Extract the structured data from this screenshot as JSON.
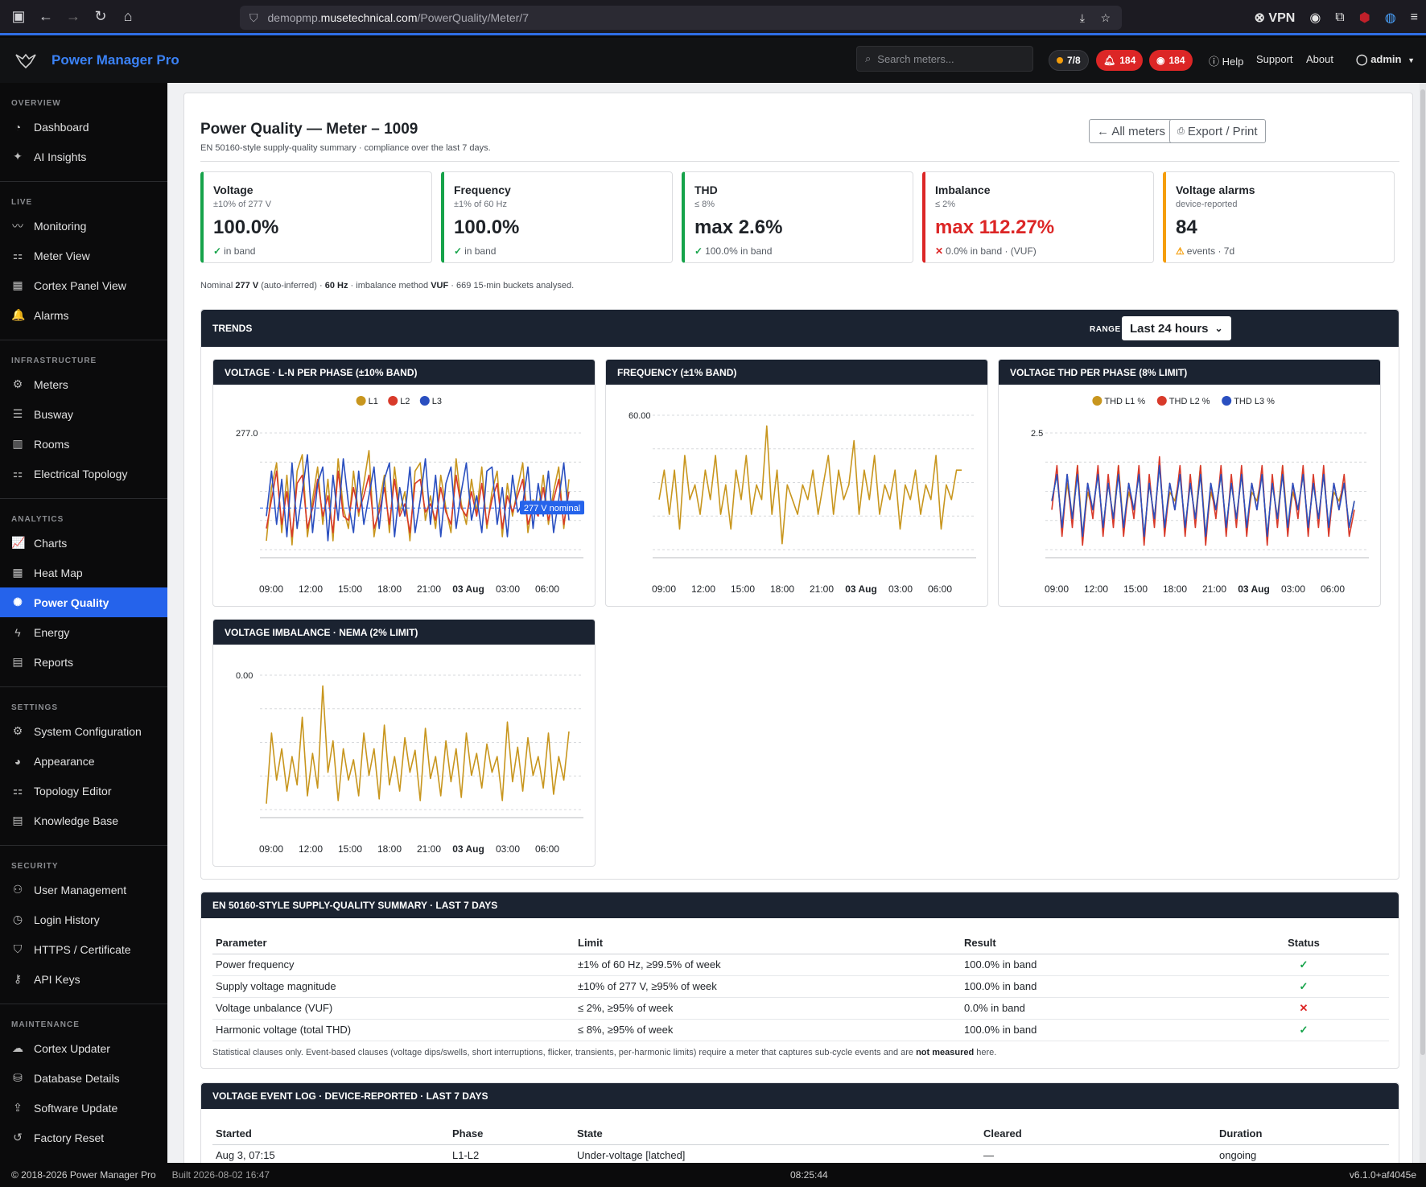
{
  "browser": {
    "url_prefix": "demopmp.",
    "url_domain": "musetechnical.com",
    "url_path": "/PowerQuality/Meter/7",
    "vpn_label": "VPN"
  },
  "header": {
    "brand": "Power Manager Pro",
    "search_placeholder": "Search meters...",
    "meters_badge": "7/8",
    "alarms_badge": "184",
    "watch_badge": "184",
    "help": "Help",
    "support": "Support",
    "about": "About",
    "user": "admin"
  },
  "sidebar": {
    "sections": [
      {
        "title": "OVERVIEW",
        "items": [
          {
            "label": "Dashboard",
            "icon": "gauge-icon",
            "glyph": "◔"
          },
          {
            "label": "AI Insights",
            "icon": "sparkle-icon",
            "glyph": "✦"
          }
        ]
      },
      {
        "title": "LIVE",
        "items": [
          {
            "label": "Monitoring",
            "icon": "pulse-icon",
            "glyph": "〰"
          },
          {
            "label": "Meter View",
            "icon": "sitemap-icon",
            "glyph": "⚏"
          },
          {
            "label": "Cortex Panel View",
            "icon": "grid-icon",
            "glyph": "▦"
          },
          {
            "label": "Alarms",
            "icon": "bell-icon",
            "glyph": "🔔"
          }
        ]
      },
      {
        "title": "INFRASTRUCTURE",
        "items": [
          {
            "label": "Meters",
            "icon": "cog-icon",
            "glyph": "⚙"
          },
          {
            "label": "Busway",
            "icon": "lines-icon",
            "glyph": "☰"
          },
          {
            "label": "Rooms",
            "icon": "columns-icon",
            "glyph": "▥"
          },
          {
            "label": "Electrical Topology",
            "icon": "topology-icon",
            "glyph": "⚏"
          }
        ]
      },
      {
        "title": "ANALYTICS",
        "items": [
          {
            "label": "Charts",
            "icon": "chart-line-icon",
            "glyph": "📈"
          },
          {
            "label": "Heat Map",
            "icon": "grid-icon",
            "glyph": "▦"
          },
          {
            "label": "Power Quality",
            "icon": "waveform-icon",
            "glyph": "✺",
            "active": true
          },
          {
            "label": "Energy",
            "icon": "bolt-icon",
            "glyph": "ϟ"
          },
          {
            "label": "Reports",
            "icon": "document-icon",
            "glyph": "▤"
          }
        ]
      },
      {
        "title": "SETTINGS",
        "items": [
          {
            "label": "System Configuration",
            "icon": "gear-icon",
            "glyph": "⚙"
          },
          {
            "label": "Appearance",
            "icon": "palette-icon",
            "glyph": "◕"
          },
          {
            "label": "Topology Editor",
            "icon": "topology-icon",
            "glyph": "⚏"
          },
          {
            "label": "Knowledge Base",
            "icon": "book-icon",
            "glyph": "▤"
          }
        ]
      },
      {
        "title": "SECURITY",
        "items": [
          {
            "label": "User Management",
            "icon": "users-icon",
            "glyph": "⚇"
          },
          {
            "label": "Login History",
            "icon": "history-icon",
            "glyph": "◷"
          },
          {
            "label": "HTTPS / Certificate",
            "icon": "shield-icon",
            "glyph": "⛉"
          },
          {
            "label": "API Keys",
            "icon": "key-icon",
            "glyph": "⚷"
          }
        ]
      },
      {
        "title": "MAINTENANCE",
        "items": [
          {
            "label": "Cortex Updater",
            "icon": "cloud-icon",
            "glyph": "☁"
          },
          {
            "label": "Database Details",
            "icon": "database-icon",
            "glyph": "⛁"
          },
          {
            "label": "Software Update",
            "icon": "upload-icon",
            "glyph": "⇪"
          },
          {
            "label": "Factory Reset",
            "icon": "reset-icon",
            "glyph": "↺"
          }
        ]
      }
    ]
  },
  "page": {
    "title": "Power Quality — Meter – 1009",
    "subtitle": "EN 50160-style supply-quality summary · compliance over the last 7 days.",
    "all_meters_label": "← All meters",
    "export_label": "Export / Print"
  },
  "kpis": {
    "voltage": {
      "title": "Voltage",
      "sub": "±10% of 277 V",
      "value": "100.0%",
      "foot": "in band",
      "mark": "✓",
      "mark_color": "#16a34a",
      "accent": "#16a34a"
    },
    "frequency": {
      "title": "Frequency",
      "sub": "±1% of 60 Hz",
      "value": "100.0%",
      "foot": "in band",
      "mark": "✓",
      "mark_color": "#16a34a",
      "accent": "#16a34a"
    },
    "thd": {
      "title": "THD",
      "sub": "≤ 8%",
      "value": "max 2.6%",
      "foot": "100.0% in band",
      "mark": "✓",
      "mark_color": "#16a34a",
      "accent": "#16a34a"
    },
    "imbalance": {
      "title": "Imbalance",
      "sub": "≤ 2%",
      "value": "max 112.27%",
      "foot": "0.0% in band · (VUF)",
      "mark": "✕",
      "mark_color": "#dc2626",
      "accent": "#dc2626"
    },
    "alarms": {
      "title": "Voltage alarms",
      "sub": "device-reported",
      "value": "84",
      "foot": "events · 7d",
      "mark": "⚠",
      "mark_color": "#f59e0b",
      "accent": "#f59e0b"
    }
  },
  "nominal": {
    "prefix": "Nominal",
    "voltage": "277 V",
    "voltage_note": "(auto-inferred) ·",
    "freq": "60 Hz",
    "method_text": "· imbalance method",
    "method": "VUF",
    "buckets_text": "· 669 15-min buckets analysed."
  },
  "trends": {
    "title": "TRENDS",
    "range_label": "RANGE",
    "range_value": "Last 24 hours"
  },
  "chart_data": [
    {
      "id": "voltage",
      "type": "line",
      "title": "VOLTAGE · L-N PER PHASE (±10% BAND)",
      "x_ticks": [
        "09:00",
        "12:00",
        "15:00",
        "18:00",
        "21:00",
        "03 Aug",
        "03:00",
        "06:00"
      ],
      "y_ticks": [
        "277.0"
      ],
      "annotation": "277 V nominal",
      "legend_position": "top",
      "grid": true,
      "series": [
        {
          "name": "L1",
          "color": "#c8961e",
          "values": [
            276.2,
            277.5,
            278.1,
            276.4,
            277.8,
            276.1,
            277.9,
            278.3,
            276.3,
            277.2,
            278.0,
            276.6,
            277.7,
            276.2,
            278.2,
            277.0,
            276.5,
            277.9,
            276.8,
            277.6,
            278.4,
            276.3,
            277.1,
            277.8,
            276.4,
            278.0,
            276.9,
            277.4,
            276.2,
            277.9,
            278.1,
            276.7,
            277.3,
            276.5,
            277.8,
            277.0,
            276.4,
            278.2,
            277.1,
            276.6,
            277.7,
            276.9,
            278.0,
            276.5,
            277.4,
            277.9,
            276.3,
            277.6,
            276.8,
            277.5,
            278.1,
            276.4,
            277.2,
            276.9,
            277.8,
            276.6,
            277.4,
            278.0,
            276.5,
            277.7
          ]
        },
        {
          "name": "L2",
          "color": "#d83a2a",
          "values": [
            276.5,
            277.2,
            277.9,
            276.6,
            277.4,
            276.3,
            277.6,
            277.8,
            276.5,
            277.0,
            277.7,
            276.8,
            277.3,
            276.4,
            277.9,
            276.8,
            276.7,
            277.5,
            276.9,
            277.3,
            277.8,
            276.5,
            276.9,
            277.5,
            276.6,
            277.7,
            276.8,
            277.1,
            276.4,
            277.6,
            277.7,
            276.9,
            277.1,
            276.7,
            277.5,
            276.9,
            276.6,
            277.8,
            277.0,
            276.8,
            277.4,
            276.8,
            277.6,
            276.6,
            277.2,
            277.6,
            276.5,
            277.3,
            276.9,
            277.3,
            277.7,
            276.6,
            277.0,
            276.8,
            277.5,
            276.7,
            277.2,
            277.7,
            276.6,
            277.4
          ]
        },
        {
          "name": "L3",
          "color": "#2a4fc0",
          "values": [
            276.8,
            277.9,
            276.6,
            277.7,
            276.3,
            278.1,
            276.5,
            277.4,
            278.3,
            276.4,
            277.6,
            278.0,
            276.2,
            277.8,
            276.7,
            278.2,
            277.1,
            276.4,
            277.9,
            276.6,
            277.3,
            278.0,
            276.5,
            277.7,
            278.1,
            276.3,
            277.5,
            276.8,
            278.0,
            276.4,
            277.2,
            278.2,
            276.6,
            277.8,
            276.3,
            277.6,
            278.0,
            276.5,
            277.4,
            278.1,
            276.7,
            277.3,
            276.4,
            277.9,
            278.0,
            276.6,
            277.5,
            276.3,
            277.8,
            276.9,
            277.1,
            278.0,
            276.5,
            277.6,
            276.8,
            277.9,
            276.4,
            277.2,
            278.1,
            276.7
          ]
        }
      ]
    },
    {
      "id": "frequency",
      "type": "line",
      "title": "FREQUENCY (±1% BAND)",
      "x_ticks": [
        "09:00",
        "12:00",
        "15:00",
        "18:00",
        "21:00",
        "03 Aug",
        "03:00",
        "06:00"
      ],
      "y_ticks": [
        "60.00"
      ],
      "grid": true,
      "series": [
        {
          "name": "",
          "color": "#c8961e",
          "values": [
            59.99,
            60.01,
            59.98,
            60.01,
            59.97,
            60.02,
            59.99,
            60.0,
            59.98,
            60.01,
            59.99,
            60.02,
            59.98,
            60.0,
            59.97,
            60.01,
            59.99,
            60.02,
            59.98,
            60.0,
            59.99,
            60.04,
            59.98,
            60.01,
            59.96,
            60.0,
            59.99,
            59.98,
            60.0,
            59.99,
            60.01,
            59.98,
            60.0,
            60.02,
            59.98,
            60.01,
            59.99,
            60.0,
            60.03,
            59.98,
            60.01,
            59.99,
            60.02,
            59.98,
            60.0,
            59.99,
            60.01,
            59.97,
            60.0,
            59.99,
            60.01,
            59.98,
            60.0,
            59.99,
            60.02,
            59.97,
            60.0,
            59.99,
            60.01,
            60.01
          ]
        }
      ]
    },
    {
      "id": "thd",
      "type": "line",
      "title": "VOLTAGE THD PER PHASE (8% LIMIT)",
      "x_ticks": [
        "09:00",
        "12:00",
        "15:00",
        "18:00",
        "21:00",
        "03 Aug",
        "03:00",
        "06:00"
      ],
      "y_ticks": [
        "2.5"
      ],
      "legend_position": "top",
      "grid": true,
      "series": [
        {
          "name": "THD L1 %",
          "color": "#c8961e",
          "values": [
            2.1,
            2.4,
            1.8,
            2.3,
            1.9,
            2.5,
            1.7,
            2.2,
            2.0,
            2.4,
            1.8,
            2.3,
            1.9,
            2.5,
            1.8,
            2.2,
            2.0,
            2.4,
            1.7,
            2.3,
            1.9,
            2.5,
            1.8,
            2.2,
            2.1,
            2.4,
            1.8,
            2.3,
            1.9,
            2.5,
            1.7,
            2.2,
            2.0,
            2.4,
            1.8,
            2.3,
            1.9,
            2.4,
            1.8,
            2.2,
            2.1,
            2.4,
            1.7,
            2.3,
            1.9,
            2.5,
            1.8,
            2.2,
            2.0,
            2.4,
            1.8,
            2.3,
            1.9,
            2.4,
            1.8,
            2.2,
            2.1,
            2.3,
            1.8,
            2.1
          ]
        },
        {
          "name": "THD L2 %",
          "color": "#d83a2a",
          "values": [
            2.0,
            2.5,
            1.7,
            2.4,
            1.8,
            2.5,
            1.6,
            2.3,
            1.9,
            2.5,
            1.7,
            2.4,
            1.8,
            2.5,
            1.7,
            2.3,
            1.9,
            2.5,
            1.6,
            2.4,
            1.8,
            2.6,
            1.7,
            2.3,
            2.0,
            2.5,
            1.7,
            2.4,
            1.8,
            2.5,
            1.6,
            2.3,
            1.9,
            2.5,
            1.7,
            2.4,
            1.8,
            2.5,
            1.7,
            2.3,
            2.0,
            2.5,
            1.6,
            2.4,
            1.8,
            2.5,
            1.7,
            2.3,
            1.9,
            2.5,
            1.7,
            2.4,
            1.8,
            2.5,
            1.7,
            2.3,
            2.0,
            2.4,
            1.7,
            2.0
          ]
        },
        {
          "name": "THD L3 %",
          "color": "#2a4fc0",
          "values": [
            2.1,
            2.4,
            1.8,
            2.4,
            1.9,
            2.4,
            1.7,
            2.3,
            2.0,
            2.4,
            1.8,
            2.3,
            1.9,
            2.4,
            1.8,
            2.3,
            2.0,
            2.4,
            1.7,
            2.3,
            1.9,
            2.5,
            1.8,
            2.3,
            2.0,
            2.4,
            1.8,
            2.3,
            1.9,
            2.4,
            1.7,
            2.3,
            2.0,
            2.4,
            1.8,
            2.3,
            1.9,
            2.4,
            1.8,
            2.3,
            2.0,
            2.4,
            1.7,
            2.3,
            1.9,
            2.4,
            1.8,
            2.3,
            2.0,
            2.4,
            1.8,
            2.3,
            1.9,
            2.4,
            1.8,
            2.3,
            2.0,
            2.3,
            1.8,
            2.1
          ]
        }
      ]
    },
    {
      "id": "imbalance",
      "type": "line",
      "title": "VOLTAGE IMBALANCE · NEMA (2% LIMIT)",
      "x_ticks": [
        "09:00",
        "12:00",
        "15:00",
        "18:00",
        "21:00",
        "03 Aug",
        "03:00",
        "06:00"
      ],
      "y_ticks": [
        "0.00"
      ],
      "grid": true,
      "series": [
        {
          "name": "",
          "color": "#c8961e",
          "values": [
            0.1,
            0.55,
            0.25,
            0.45,
            0.18,
            0.4,
            0.22,
            0.65,
            0.15,
            0.42,
            0.2,
            0.85,
            0.3,
            0.5,
            0.12,
            0.45,
            0.25,
            0.38,
            0.15,
            0.55,
            0.28,
            0.45,
            0.13,
            0.6,
            0.22,
            0.4,
            0.18,
            0.52,
            0.3,
            0.44,
            0.12,
            0.58,
            0.26,
            0.4,
            0.15,
            0.5,
            0.24,
            0.45,
            0.14,
            0.55,
            0.28,
            0.42,
            0.2,
            0.48,
            0.3,
            0.4,
            0.12,
            0.62,
            0.24,
            0.46,
            0.18,
            0.52,
            0.28,
            0.4,
            0.2,
            0.55,
            0.16,
            0.4,
            0.25,
            0.56
          ]
        }
      ]
    }
  ],
  "summary": {
    "title": "EN 50160-STYLE SUPPLY-QUALITY SUMMARY · LAST 7 DAYS",
    "columns": [
      "Parameter",
      "Limit",
      "Result",
      "Status"
    ],
    "rows": [
      {
        "parameter": "Power frequency",
        "limit": "±1% of 60 Hz, ≥99.5% of week",
        "result": "100.0% in band",
        "status": "✓",
        "ok": true
      },
      {
        "parameter": "Supply voltage magnitude",
        "limit": "±10% of 277 V, ≥95% of week",
        "result": "100.0% in band",
        "status": "✓",
        "ok": true
      },
      {
        "parameter": "Voltage unbalance (VUF)",
        "limit": "≤ 2%, ≥95% of week",
        "result": "0.0% in band",
        "status": "✕",
        "ok": false
      },
      {
        "parameter": "Harmonic voltage (total THD)",
        "limit": "≤ 8%, ≥95% of week",
        "result": "100.0% in band",
        "status": "✓",
        "ok": true
      }
    ],
    "note_a": "Statistical clauses only. Event-based clauses (voltage dips/swells, short interruptions, flicker, transients, per-harmonic limits) require a meter that captures sub-cycle events and are",
    "note_b": "not measured",
    "note_c": "here."
  },
  "events": {
    "title": "VOLTAGE EVENT LOG · DEVICE-REPORTED · LAST 7 DAYS",
    "columns": [
      "Started",
      "Phase",
      "State",
      "Cleared",
      "Duration"
    ],
    "rows": [
      {
        "started": "Aug 3, 07:15",
        "phase": "L1-L2",
        "state": "Under-voltage [latched]",
        "cleared": "—",
        "duration": "ongoing"
      }
    ]
  },
  "footer": {
    "copyright": "© 2018-2026 Power Manager Pro",
    "built": "Built 2026-08-02 16:47",
    "clock": "08:25:44",
    "version": "v6.1.0+af4045e"
  }
}
